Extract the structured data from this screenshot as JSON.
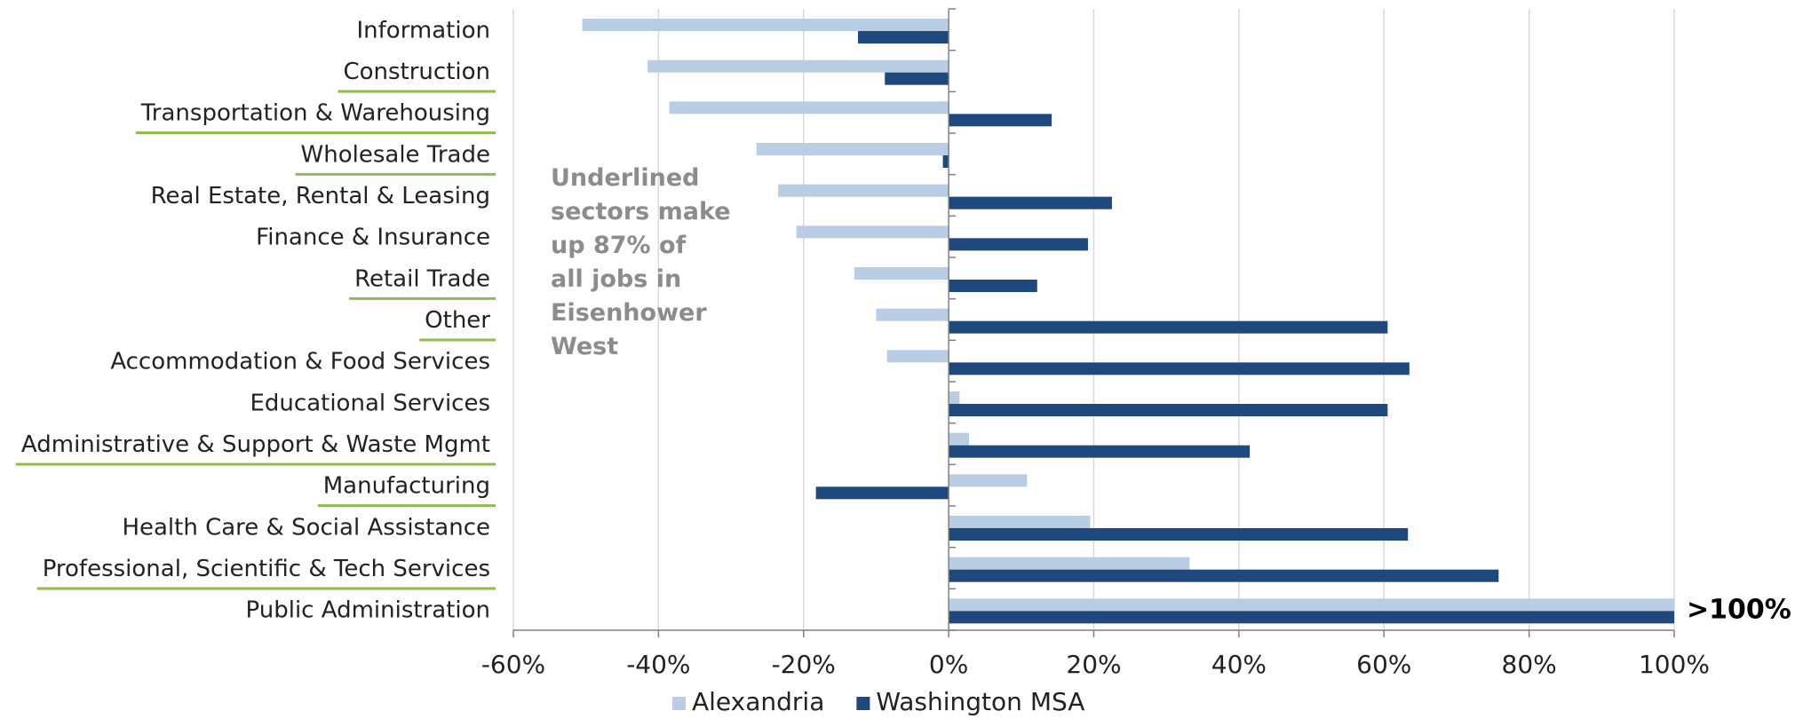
{
  "chart_data": {
    "type": "bar",
    "orientation": "horizontal",
    "categories": [
      "Information",
      "Construction",
      "Transportation & Warehousing",
      "Wholesale Trade",
      "Real Estate, Rental & Leasing",
      "Finance & Insurance",
      "Retail Trade",
      "Other",
      "Accommodation & Food Services",
      "Educational Services",
      "Administrative & Support & Waste Mgmt",
      "Manufacturing",
      "Health Care & Social Assistance",
      "Professional, Scientific & Tech Services",
      "Public Administration"
    ],
    "underlined": [
      false,
      true,
      true,
      true,
      false,
      false,
      true,
      true,
      false,
      false,
      true,
      true,
      false,
      true,
      false
    ],
    "series": [
      {
        "name": "Alexandria",
        "color": "#b9cde5",
        "values": [
          -50.5,
          -41.5,
          -38.5,
          -26.5,
          -23.5,
          -21,
          -13,
          -10,
          -8.5,
          1.5,
          2.8,
          10.8,
          19.5,
          33.2,
          100
        ]
      },
      {
        "name": "Washington MSA",
        "color": "#1f497d",
        "values": [
          -12.5,
          -8.8,
          14.2,
          -0.8,
          22.5,
          19.2,
          12.2,
          60.5,
          63.5,
          60.5,
          41.5,
          -18.3,
          63.3,
          75.8,
          100
        ]
      }
    ],
    "xlim": [
      -60,
      100
    ],
    "xticks": [
      "-60%",
      "-40%",
      "-20%",
      "0%",
      "20%",
      "40%",
      "60%",
      "80%",
      "100%"
    ],
    "grid": true,
    "legend_position": "bottom",
    "underline_color": "#8fbc4b",
    "overflow_label": ">100%",
    "annotation": [
      "Underlined",
      "sectors make",
      "up 87% of",
      "all jobs in",
      "Eisenhower",
      "West"
    ]
  }
}
